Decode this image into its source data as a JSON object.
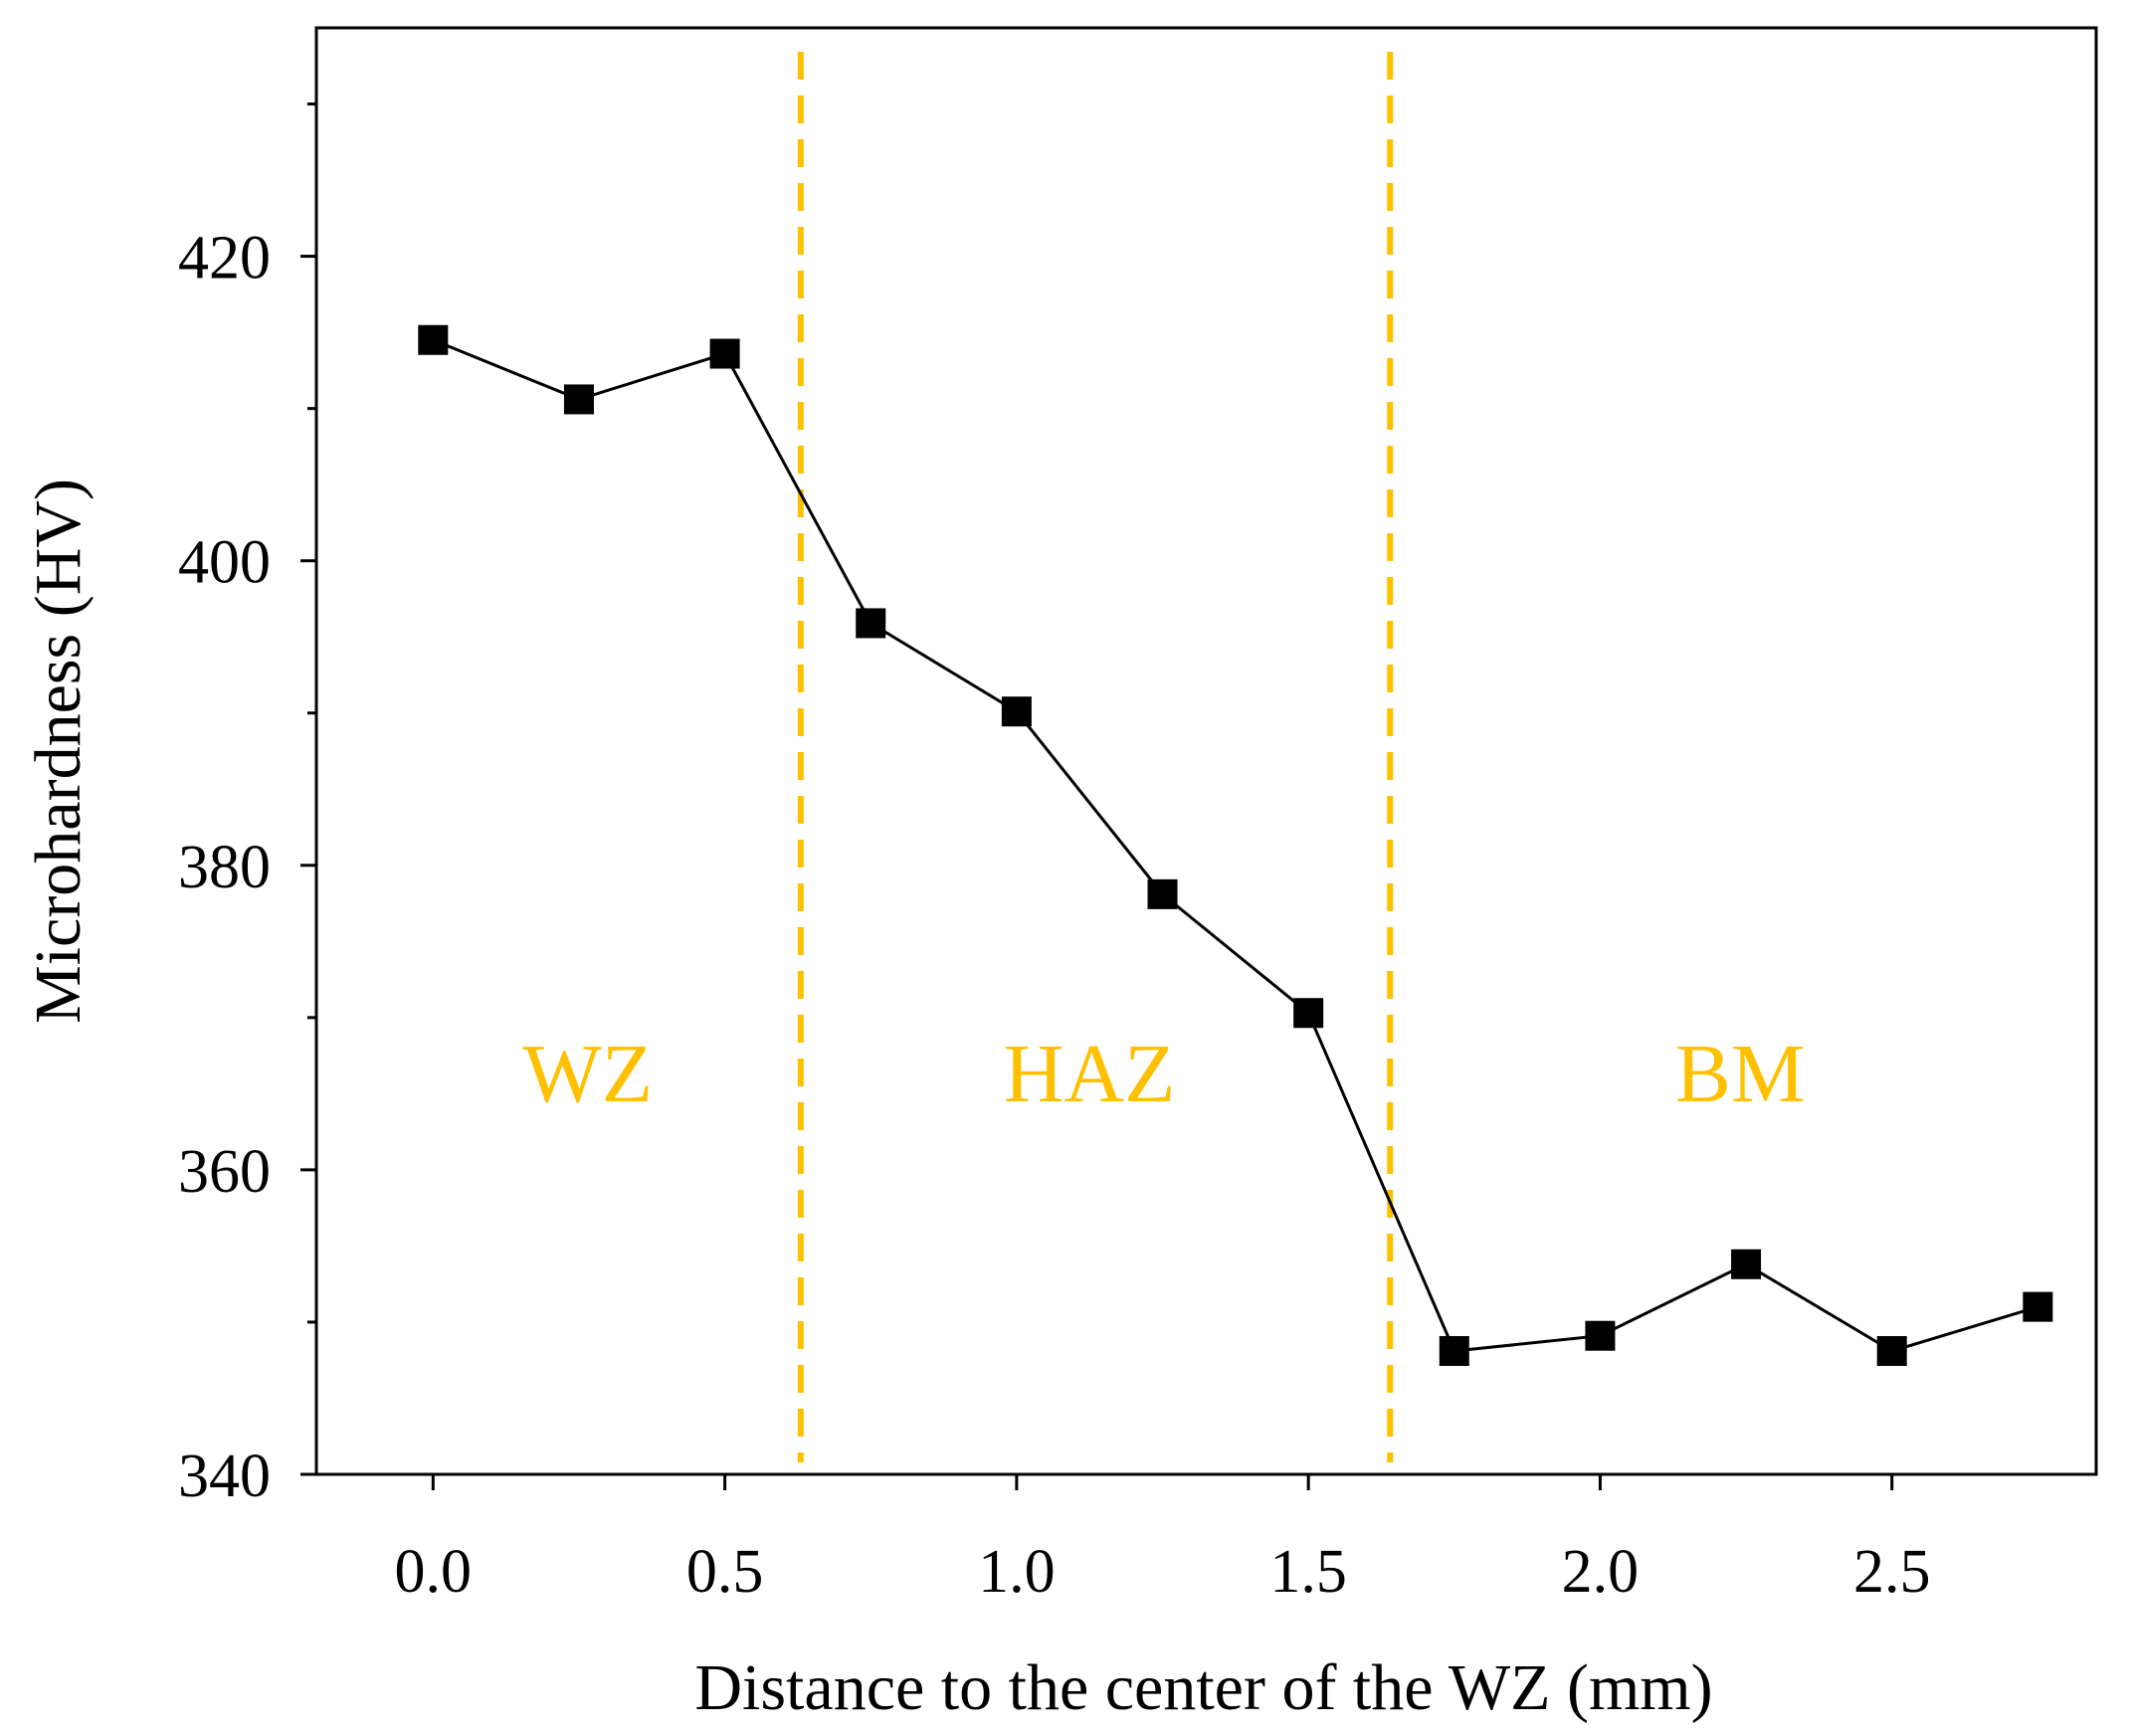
{
  "chart_data": {
    "type": "line",
    "title": "",
    "xlabel": "Distance to the center of the WZ (mm)",
    "ylabel": "Microhardness (HV)",
    "xlim": [
      -0.2,
      2.85
    ],
    "ylim": [
      340,
      435
    ],
    "xticks": [
      0.0,
      0.5,
      1.0,
      1.5,
      2.0,
      2.5
    ],
    "xtick_labels": [
      "0.0",
      "0.5",
      "1.0",
      "1.5",
      "2.0",
      "2.5"
    ],
    "yticks": [
      340,
      360,
      380,
      400,
      420
    ],
    "ytick_labels": [
      "340",
      "360",
      "380",
      "400",
      "420"
    ],
    "grid": false,
    "series": [
      {
        "name": "Microhardness",
        "marker": "square",
        "color": "#000000",
        "x": [
          0.0,
          0.25,
          0.5,
          0.75,
          1.0,
          1.25,
          1.5,
          1.75,
          2.0,
          2.25,
          2.5,
          2.75
        ],
        "y": [
          414.5,
          410.6,
          413.6,
          395.9,
          390.1,
          378.1,
          370.3,
          348.1,
          349.1,
          353.8,
          348.1,
          351.0
        ]
      }
    ],
    "boundaries": [
      {
        "x": 0.63,
        "color": "#FFC000",
        "style": "dashed"
      },
      {
        "x": 1.64,
        "color": "#FFC000",
        "style": "dashed"
      }
    ],
    "regions": [
      {
        "label": "WZ",
        "x": 0.265,
        "y": 364.5,
        "color": "#FFC000"
      },
      {
        "label": "HAZ",
        "x": 1.125,
        "y": 364.5,
        "color": "#FFC000"
      },
      {
        "label": "BM",
        "x": 2.24,
        "y": 364.5,
        "color": "#FFC000"
      }
    ]
  }
}
